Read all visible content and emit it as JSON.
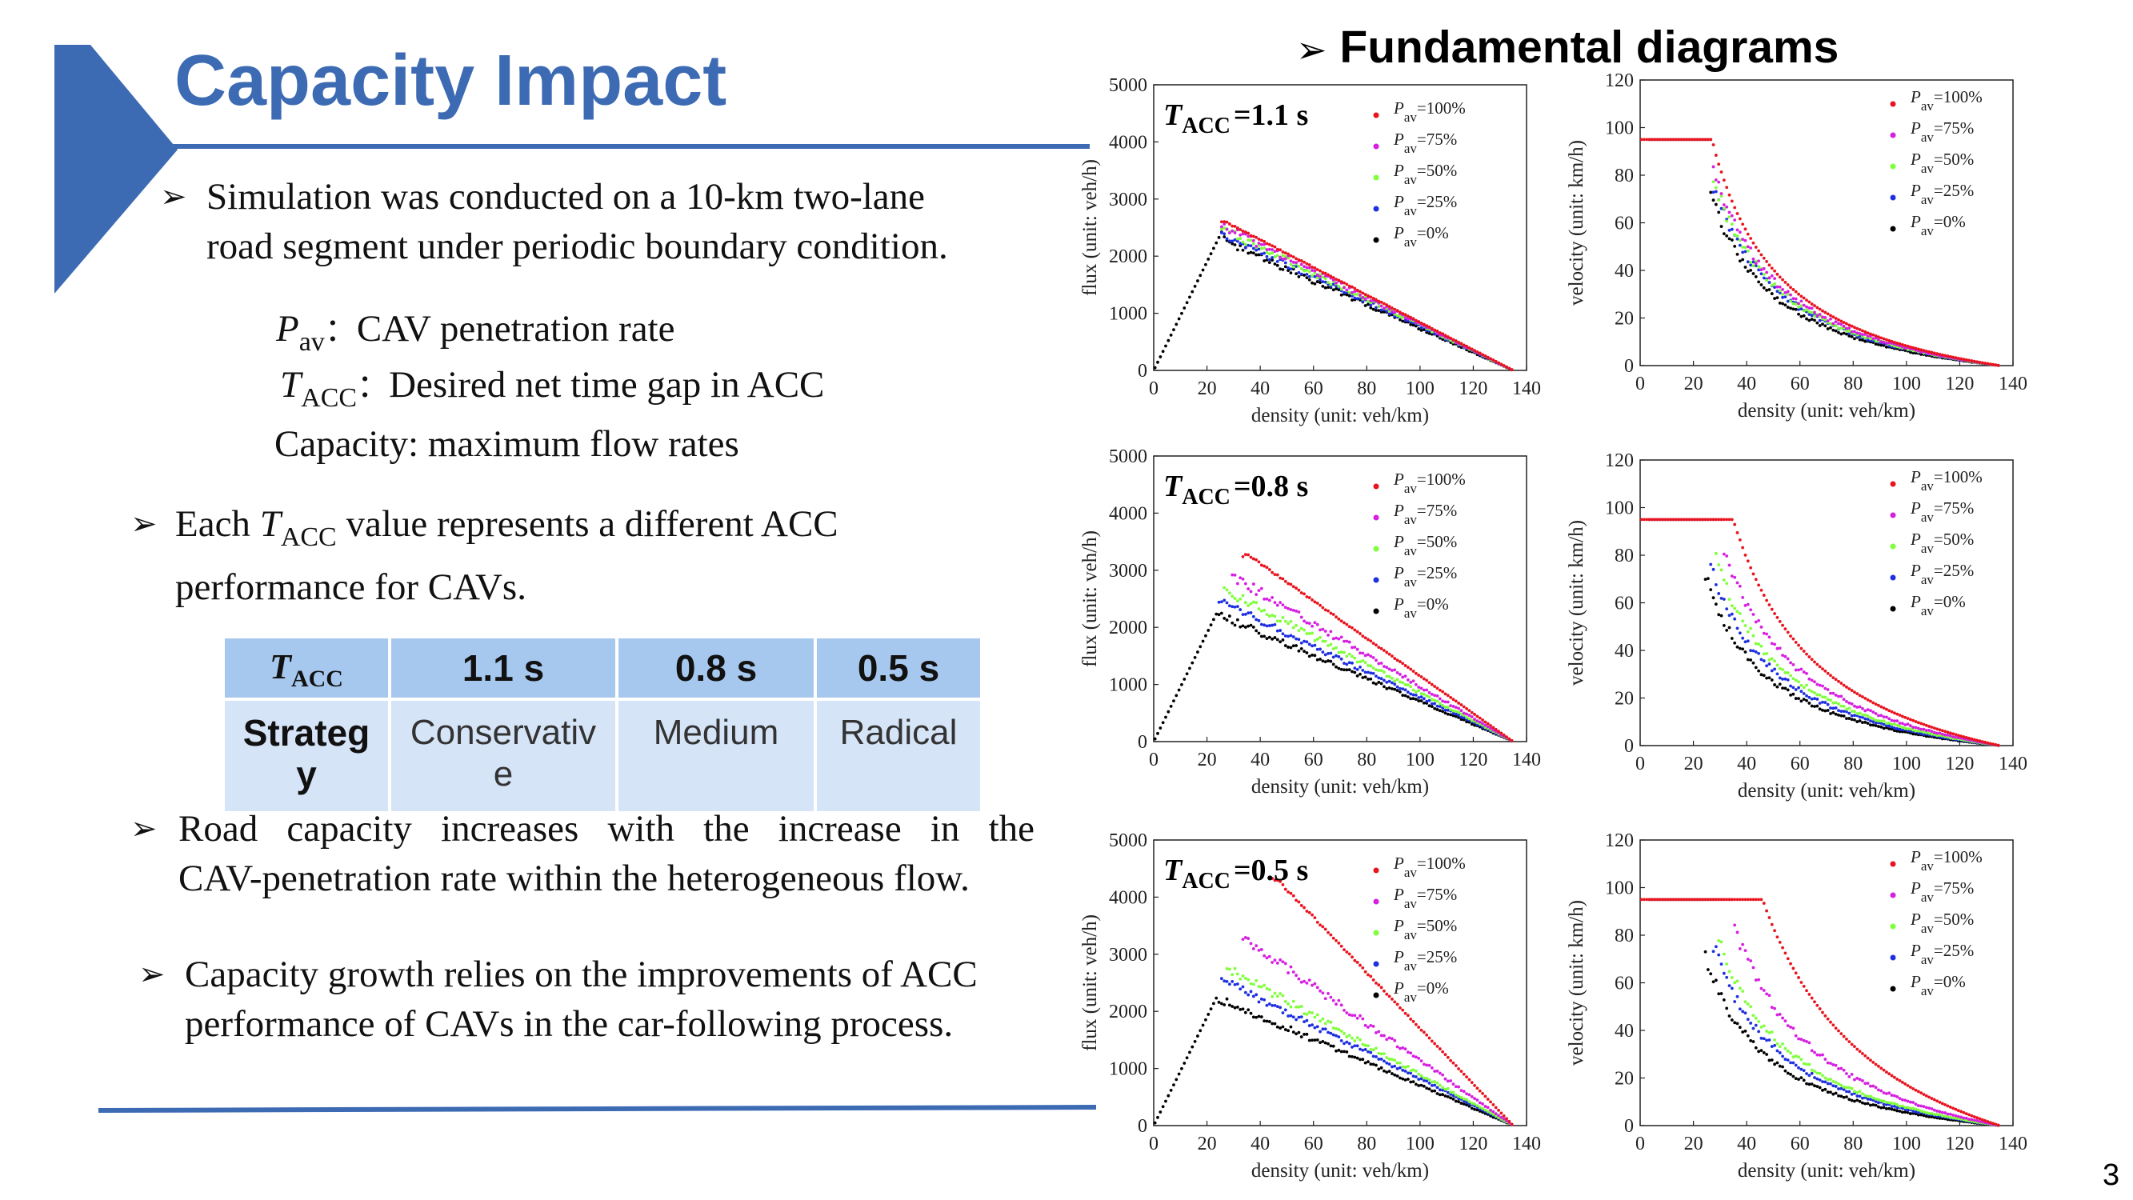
{
  "slide": {
    "title": "Capacity Impact",
    "page_number": "3",
    "bullets": {
      "b1_line1": "Simulation was conducted on a 10-km two-lane",
      "b1_line2": "road segment under periodic boundary condition.",
      "b2_line1": "value represents a different ACC",
      "b2_each": "Each",
      "b2_line2": "performance for CAVs.",
      "b3_line1": "Road capacity increases with the increase in the",
      "b3_line2": "CAV-penetration rate within the heterogeneous flow.",
      "b4_line1": "Capacity growth relies on the improvements of ACC",
      "b4_line2": "performance of CAVs in the car-following process."
    },
    "definitions": {
      "pav_symbol": "P",
      "pav_sub": "av",
      "pav_text": "CAV penetration rate",
      "tacc_symbol": "T",
      "tacc_sub": "ACC",
      "tacc_text": "Desired net time gap in ACC",
      "capacity_text": "Capacity: maximum flow rates"
    }
  },
  "table": {
    "header": {
      "symbol": "T",
      "sub": "ACC",
      "col1": "1.1 s",
      "col2": "0.8 s",
      "col3": "0.5 s"
    },
    "row": {
      "label_l1": "Strateg",
      "label_l2": "y",
      "c1_l1": "Conservativ",
      "c1_l2": "e",
      "c2": "Medium",
      "c3": "Radical"
    }
  },
  "figure_heading": "Fundamental diagrams",
  "colors": {
    "title": "#3d6bb3",
    "accent": "#3d6bb3",
    "p100": "#e8141e",
    "p75": "#d61fe0",
    "p50": "#7fff3a",
    "p25": "#1e2fe0",
    "p0": "#000000"
  },
  "chart_data": [
    {
      "type": "scatter",
      "id": "flux-1.1",
      "annotation": "=1.1 s",
      "tacc_symbol": "T",
      "tacc_sub": "ACC",
      "xlabel": "density (unit: veh/km)",
      "ylabel": "flux (unit: veh/h)",
      "xlim": [
        0,
        140
      ],
      "ylim": [
        0,
        5000
      ],
      "xticks": [
        "0",
        "20",
        "40",
        "60",
        "80",
        "100",
        "120",
        "140"
      ],
      "yticks": [
        "0",
        "1000",
        "2000",
        "3000",
        "4000",
        "5000"
      ],
      "legend": [
        "=100%",
        "=75%",
        "=50%",
        "=25%",
        "=0%"
      ],
      "legend_sym": "P",
      "legend_sub": "av",
      "capacity": [
        2610,
        2580,
        2520,
        2430,
        2350
      ],
      "critical_density": [
        27,
        27,
        27,
        27,
        26
      ],
      "jam_density": 135
    },
    {
      "type": "scatter",
      "id": "velocity-1.1",
      "xlabel": "density (unit: veh/km)",
      "ylabel": "velocity (unit: km/h)",
      "xlim": [
        0,
        140
      ],
      "ylim": [
        0,
        120
      ],
      "xticks": [
        "0",
        "20",
        "40",
        "60",
        "80",
        "100",
        "120",
        "140"
      ],
      "yticks": [
        "0",
        "20",
        "40",
        "60",
        "80",
        "100",
        "120"
      ],
      "legend": [
        "=100%",
        "=75%",
        "=50%",
        "=25%",
        "=0%"
      ],
      "legend_sym": "P",
      "legend_sub": "av",
      "free_speed": 95,
      "critical_density": [
        27,
        27,
        27,
        27,
        26
      ],
      "jam_density": 135
    },
    {
      "type": "scatter",
      "id": "flux-0.8",
      "annotation": "=0.8 s",
      "tacc_symbol": "T",
      "tacc_sub": "ACC",
      "xlabel": "density (unit: veh/km)",
      "ylabel": "flux (unit: veh/h)",
      "xlim": [
        0,
        140
      ],
      "ylim": [
        0,
        5000
      ],
      "xticks": [
        "0",
        "20",
        "40",
        "60",
        "80",
        "100",
        "120",
        "140"
      ],
      "yticks": [
        "0",
        "1000",
        "2000",
        "3000",
        "4000",
        "5000"
      ],
      "legend": [
        "=100%",
        "=75%",
        "=50%",
        "=25%",
        "=0%"
      ],
      "legend_sym": "P",
      "legend_sub": "av",
      "capacity": [
        3300,
        2950,
        2700,
        2500,
        2300
      ],
      "critical_density": [
        35,
        31,
        28,
        26,
        24
      ],
      "jam_density": 135
    },
    {
      "type": "scatter",
      "id": "velocity-0.8",
      "xlabel": "density (unit: veh/km)",
      "ylabel": "velocity (unit: km/h)",
      "xlim": [
        0,
        140
      ],
      "ylim": [
        0,
        120
      ],
      "xticks": [
        "0",
        "20",
        "40",
        "60",
        "80",
        "100",
        "120",
        "140"
      ],
      "yticks": [
        "0",
        "20",
        "40",
        "60",
        "80",
        "100",
        "120"
      ],
      "legend": [
        "=100%",
        "=75%",
        "=50%",
        "=25%",
        "=0%"
      ],
      "legend_sym": "P",
      "legend_sub": "av",
      "free_speed": 95,
      "critical_density": [
        35,
        31,
        28,
        26,
        24
      ],
      "jam_density": 135
    },
    {
      "type": "scatter",
      "id": "flux-0.5",
      "annotation": "=0.5 s",
      "tacc_symbol": "T",
      "tacc_sub": "ACC",
      "xlabel": "density (unit: veh/km)",
      "ylabel": "flux (unit: veh/h)",
      "xlim": [
        0,
        140
      ],
      "ylim": [
        0,
        5000
      ],
      "xticks": [
        "0",
        "20",
        "40",
        "60",
        "80",
        "100",
        "120",
        "140"
      ],
      "yticks": [
        "0",
        "1000",
        "2000",
        "3000",
        "4000",
        "5000"
      ],
      "legend": [
        "=100%",
        "=75%",
        "=50%",
        "=25%",
        "=0%"
      ],
      "legend_sym": "P",
      "legend_sub": "av",
      "capacity": [
        4350,
        3350,
        2800,
        2600,
        2300
      ],
      "critical_density": [
        46,
        35,
        29,
        27,
        24
      ],
      "jam_density": 135
    },
    {
      "type": "scatter",
      "id": "velocity-0.5",
      "xlabel": "density (unit: veh/km)",
      "ylabel": "velocity (unit: km/h)",
      "xlim": [
        0,
        140
      ],
      "ylim": [
        0,
        120
      ],
      "xticks": [
        "0",
        "20",
        "40",
        "60",
        "80",
        "100",
        "120",
        "140"
      ],
      "yticks": [
        "0",
        "20",
        "40",
        "60",
        "80",
        "100",
        "120"
      ],
      "legend": [
        "=100%",
        "=75%",
        "=50%",
        "=25%",
        "=0%"
      ],
      "legend_sym": "P",
      "legend_sub": "av",
      "free_speed": 95,
      "critical_density": [
        46,
        35,
        29,
        27,
        24
      ],
      "jam_density": 135
    }
  ]
}
